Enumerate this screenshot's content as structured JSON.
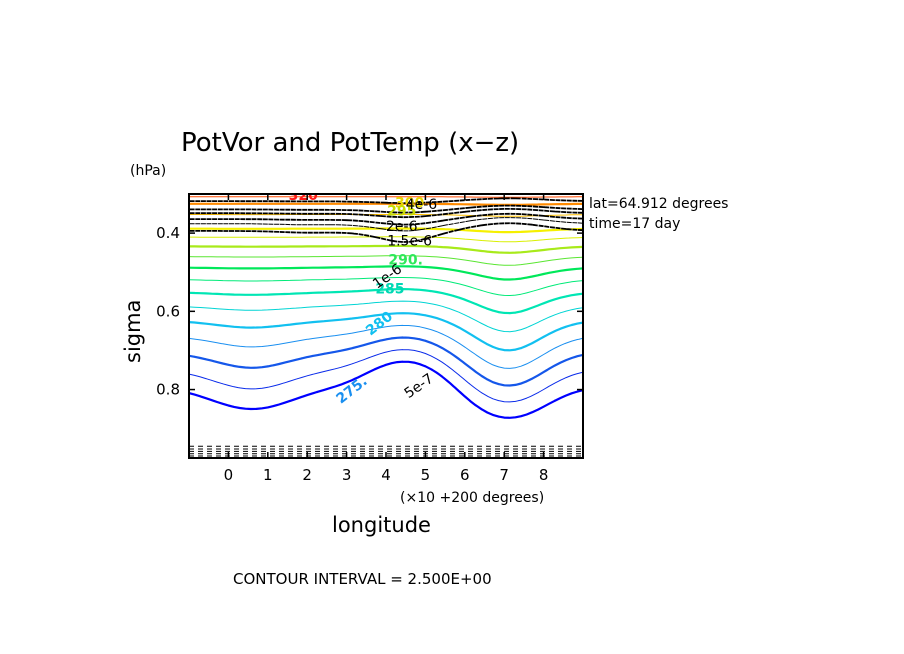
{
  "chart_data": {
    "type": "contour",
    "title": "PotVor and PotTemp (x−z)",
    "xlabel": "longitude",
    "x_unit_note": "(×10 +200 degrees)",
    "ylabel": "sigma",
    "y_unit_note": "(hPa)",
    "info_lines": [
      "lat=64.912 degrees",
      "time=17 day"
    ],
    "footer": "CONTOUR INTERVAL = 2.500E+00",
    "xlim": [
      -1,
      9
    ],
    "ylim": [
      0.975,
      0.3
    ],
    "x_ticks": [
      0,
      1,
      2,
      3,
      4,
      5,
      6,
      7,
      8
    ],
    "x_tick_labels": [
      "0",
      "1",
      "2",
      "3",
      "4",
      "5",
      "6",
      "7",
      "8"
    ],
    "y_ticks": [
      0.4,
      0.6,
      0.8
    ],
    "y_tick_labels": [
      "0.4",
      "0.6",
      "0.8"
    ],
    "temperature_contour_labels": [
      "320",
      "300",
      "295",
      "290.",
      "285",
      "280",
      "275."
    ],
    "pv_contour_labels": [
      "4e-6",
      "2e-6",
      "1.5e-6",
      "1e-6",
      "5e-7"
    ],
    "temperature_contours": [
      {
        "level": 270,
        "color": "#0000ff",
        "weight": "heavy"
      },
      {
        "level": 272.5,
        "color": "#0a2bea",
        "weight": "light"
      },
      {
        "level": 275,
        "color": "#1557ea",
        "weight": "heavy"
      },
      {
        "level": 277.5,
        "color": "#1a8ff0",
        "weight": "light"
      },
      {
        "level": 280,
        "color": "#12c0f0",
        "weight": "heavy"
      },
      {
        "level": 282.5,
        "color": "#00d4d4",
        "weight": "light"
      },
      {
        "level": 285,
        "color": "#00e6b4",
        "weight": "heavy"
      },
      {
        "level": 287.5,
        "color": "#00ea78",
        "weight": "light"
      },
      {
        "level": 290,
        "color": "#00e85a",
        "weight": "heavy"
      },
      {
        "level": 292.5,
        "color": "#5ae632",
        "weight": "light"
      },
      {
        "level": 295,
        "color": "#a8ea1a",
        "weight": "heavy"
      },
      {
        "level": 297.5,
        "color": "#d9f000",
        "weight": "light"
      },
      {
        "level": 300,
        "color": "#f5f000",
        "weight": "heavy"
      },
      {
        "level": 305,
        "color": "#ffc000",
        "weight": "light"
      },
      {
        "level": 310,
        "color": "#ff8a00",
        "weight": "heavy"
      },
      {
        "level": 315,
        "color": "#ff4a00",
        "weight": "light"
      },
      {
        "level": 320,
        "color": "#ff1a1a",
        "weight": "heavy"
      },
      {
        "level": 330,
        "color": "#c81010",
        "weight": "heavy"
      }
    ],
    "pv_contours": [
      {
        "level": 4e-06,
        "style": "dashed",
        "weight": "heavy"
      },
      {
        "level": 2e-06,
        "style": "dashed",
        "weight": "heavy"
      },
      {
        "level": 1.5e-06,
        "style": "dashed",
        "weight": "heavy"
      },
      {
        "level": 1e-06,
        "style": "dashed",
        "weight": "heavy"
      },
      {
        "level": 7.5e-07,
        "style": "dashed",
        "weight": "light"
      },
      {
        "level": 5e-07,
        "style": "dashed",
        "weight": "heavy"
      }
    ]
  }
}
